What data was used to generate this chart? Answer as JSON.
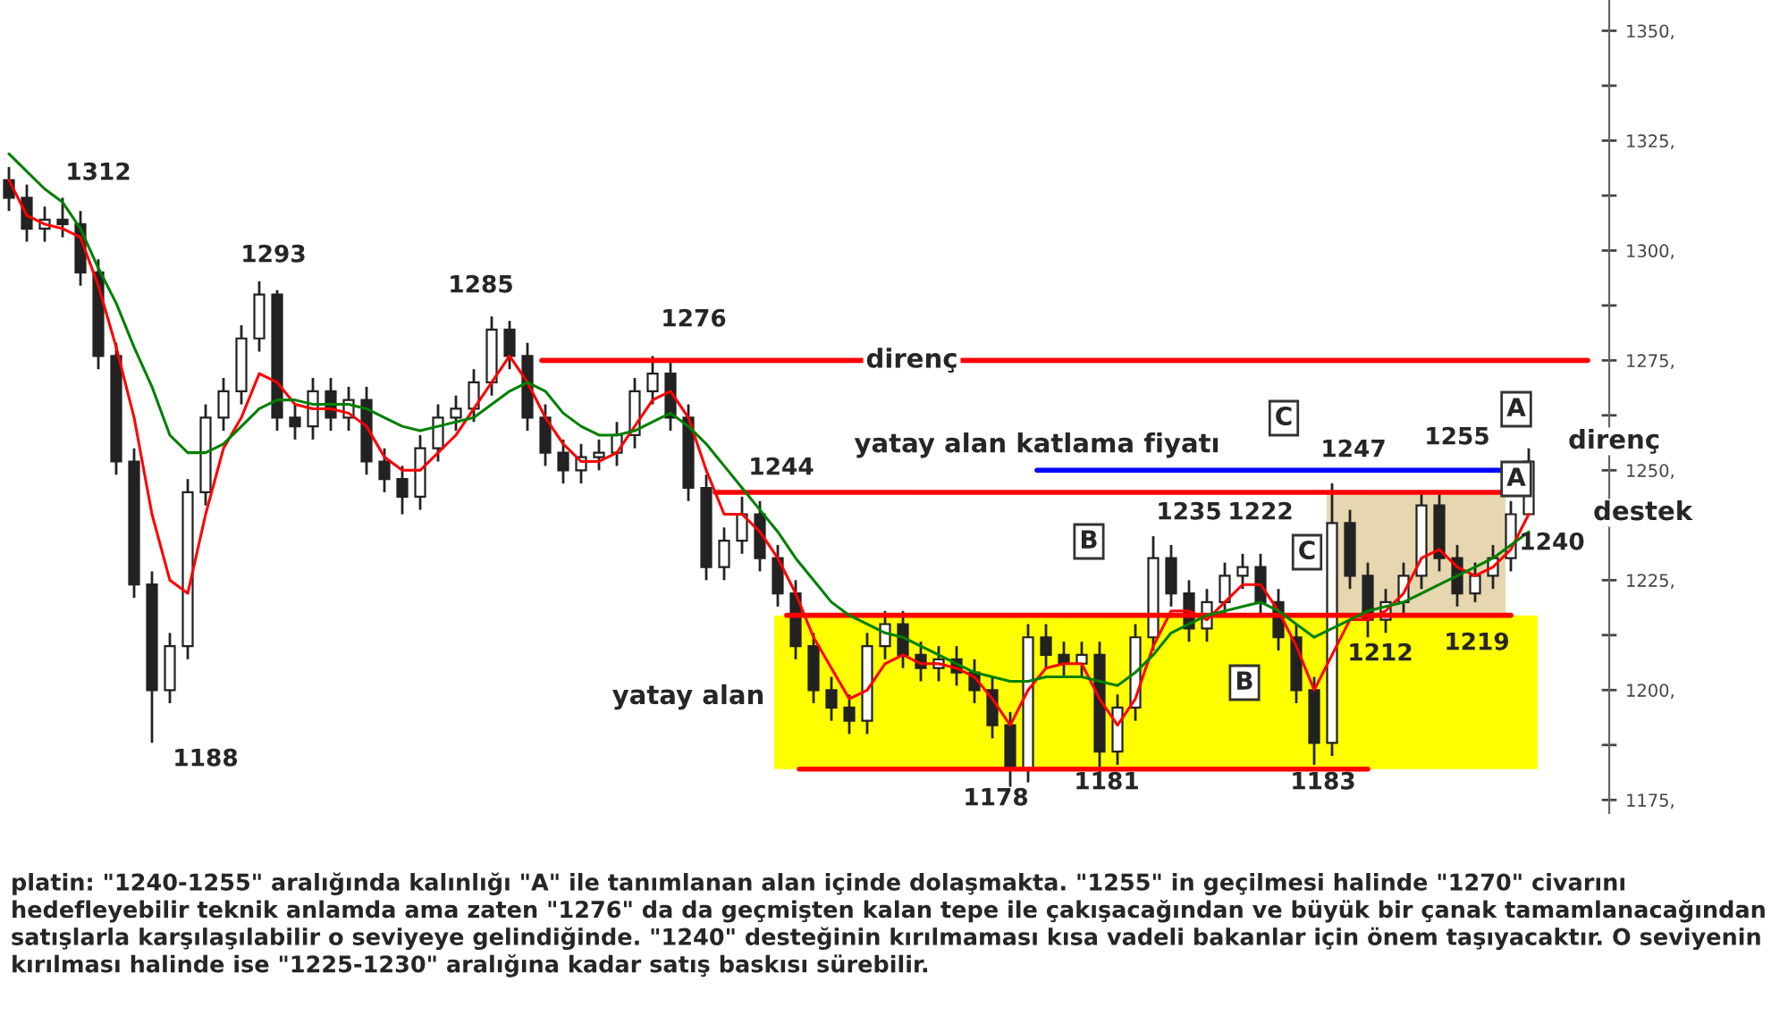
{
  "chart_data": {
    "type": "candlestick",
    "categories": [
      null,
      null,
      null,
      null,
      null,
      null,
      null,
      null,
      null,
      null,
      null,
      null,
      null,
      null,
      null,
      null,
      null,
      null,
      null,
      null,
      null,
      null,
      null,
      null,
      null,
      null,
      null,
      null,
      null,
      null,
      null,
      null,
      null,
      null,
      null,
      null,
      null,
      null,
      null,
      null,
      null,
      null,
      null,
      null,
      null,
      null,
      null,
      null,
      null,
      null,
      null,
      null,
      null,
      null,
      null,
      null,
      null,
      null,
      null,
      null,
      null,
      null,
      null,
      null,
      null,
      null,
      null,
      null,
      null,
      null,
      null,
      null,
      null,
      null,
      null,
      null,
      null,
      null,
      null,
      null,
      null,
      null,
      null,
      null,
      null,
      null
    ],
    "ohlc": [
      [
        1316,
        1319,
        1309,
        1312
      ],
      [
        1312,
        1315,
        1302,
        1305
      ],
      [
        1305,
        1310,
        1302,
        1307
      ],
      [
        1307,
        1312,
        1303,
        1306
      ],
      [
        1306,
        1309,
        1292,
        1295
      ],
      [
        1295,
        1298,
        1273,
        1276
      ],
      [
        1276,
        1279,
        1249,
        1252
      ],
      [
        1252,
        1255,
        1221,
        1224
      ],
      [
        1224,
        1227,
        1188,
        1200
      ],
      [
        1200,
        1213,
        1197,
        1210
      ],
      [
        1210,
        1248,
        1207,
        1245
      ],
      [
        1245,
        1265,
        1242,
        1262
      ],
      [
        1262,
        1271,
        1259,
        1268
      ],
      [
        1268,
        1283,
        1265,
        1280
      ],
      [
        1280,
        1293,
        1277,
        1290
      ],
      [
        1290,
        1291,
        1259,
        1262
      ],
      [
        1262,
        1265,
        1257,
        1260
      ],
      [
        1260,
        1271,
        1257,
        1268
      ],
      [
        1268,
        1271,
        1259,
        1262
      ],
      [
        1262,
        1269,
        1259,
        1266
      ],
      [
        1266,
        1269,
        1249,
        1252
      ],
      [
        1252,
        1255,
        1245,
        1248
      ],
      [
        1248,
        1251,
        1240,
        1244
      ],
      [
        1244,
        1258,
        1241,
        1255
      ],
      [
        1255,
        1265,
        1252,
        1262
      ],
      [
        1262,
        1267,
        1259,
        1264
      ],
      [
        1264,
        1273,
        1261,
        1270
      ],
      [
        1270,
        1285,
        1267,
        1282
      ],
      [
        1282,
        1284,
        1273,
        1276
      ],
      [
        1276,
        1279,
        1259,
        1262
      ],
      [
        1262,
        1265,
        1251,
        1254
      ],
      [
        1254,
        1257,
        1247,
        1250
      ],
      [
        1250,
        1256,
        1247,
        1253
      ],
      [
        1253,
        1257,
        1250,
        1254
      ],
      [
        1254,
        1261,
        1251,
        1258
      ],
      [
        1258,
        1271,
        1255,
        1268
      ],
      [
        1268,
        1276,
        1265,
        1272
      ],
      [
        1272,
        1275,
        1259,
        1262
      ],
      [
        1262,
        1265,
        1243,
        1246
      ],
      [
        1246,
        1249,
        1225,
        1228
      ],
      [
        1228,
        1237,
        1225,
        1234
      ],
      [
        1234,
        1244,
        1231,
        1240
      ],
      [
        1240,
        1243,
        1227,
        1230
      ],
      [
        1230,
        1233,
        1219,
        1222
      ],
      [
        1222,
        1225,
        1207,
        1210
      ],
      [
        1210,
        1213,
        1197,
        1200
      ],
      [
        1200,
        1203,
        1193,
        1196
      ],
      [
        1196,
        1199,
        1190,
        1193
      ],
      [
        1193,
        1213,
        1190,
        1210
      ],
      [
        1210,
        1218,
        1207,
        1215
      ],
      [
        1215,
        1218,
        1205,
        1208
      ],
      [
        1208,
        1211,
        1202,
        1205
      ],
      [
        1205,
        1210,
        1202,
        1207
      ],
      [
        1207,
        1210,
        1201,
        1204
      ],
      [
        1204,
        1207,
        1197,
        1200
      ],
      [
        1200,
        1203,
        1189,
        1192
      ],
      [
        1192,
        1195,
        1178,
        1182
      ],
      [
        1182,
        1215,
        1179,
        1212
      ],
      [
        1212,
        1215,
        1205,
        1208
      ],
      [
        1208,
        1211,
        1203,
        1206
      ],
      [
        1206,
        1211,
        1203,
        1208
      ],
      [
        1208,
        1211,
        1181,
        1186
      ],
      [
        1186,
        1199,
        1183,
        1196
      ],
      [
        1196,
        1215,
        1193,
        1212
      ],
      [
        1212,
        1235,
        1209,
        1230
      ],
      [
        1230,
        1233,
        1219,
        1222
      ],
      [
        1222,
        1225,
        1211,
        1214
      ],
      [
        1214,
        1223,
        1211,
        1220
      ],
      [
        1220,
        1229,
        1217,
        1226
      ],
      [
        1226,
        1231,
        1223,
        1228
      ],
      [
        1228,
        1231,
        1217,
        1220
      ],
      [
        1220,
        1223,
        1209,
        1212
      ],
      [
        1212,
        1215,
        1197,
        1200
      ],
      [
        1200,
        1203,
        1183,
        1188
      ],
      [
        1188,
        1247,
        1185,
        1238
      ],
      [
        1238,
        1241,
        1223,
        1226
      ],
      [
        1226,
        1229,
        1212,
        1216
      ],
      [
        1216,
        1223,
        1213,
        1220
      ],
      [
        1220,
        1229,
        1217,
        1226
      ],
      [
        1226,
        1245,
        1223,
        1242
      ],
      [
        1242,
        1245,
        1227,
        1230
      ],
      [
        1230,
        1233,
        1219,
        1222
      ],
      [
        1222,
        1229,
        1220,
        1226
      ],
      [
        1226,
        1233,
        1223,
        1230
      ],
      [
        1230,
        1243,
        1227,
        1240
      ],
      [
        1240,
        1255,
        1240,
        1252
      ]
    ],
    "series": [
      {
        "type": "line",
        "color": "#ff0000",
        "values": [
          1316,
          1308,
          1306,
          1305,
          1303,
          1292,
          1278,
          1262,
          1240,
          1225,
          1222,
          1240,
          1255,
          1262,
          1272,
          1270,
          1265,
          1264,
          1264,
          1263,
          1260,
          1253,
          1250,
          1250,
          1254,
          1258,
          1264,
          1270,
          1276,
          1270,
          1262,
          1256,
          1252,
          1252,
          1254,
          1260,
          1266,
          1268,
          1262,
          1250,
          1240,
          1240,
          1236,
          1230,
          1222,
          1212,
          1205,
          1198,
          1200,
          1206,
          1208,
          1206,
          1206,
          1205,
          1203,
          1198,
          1192,
          1200,
          1205,
          1206,
          1206,
          1198,
          1192,
          1198,
          1210,
          1218,
          1218,
          1216,
          1220,
          1224,
          1224,
          1218,
          1210,
          1200,
          1208,
          1216,
          1216,
          1218,
          1222,
          1230,
          1232,
          1228,
          1226,
          1228,
          1232,
          1240
        ]
      },
      {
        "type": "line",
        "color": "#008000",
        "values": [
          1322,
          1318,
          1314,
          1311,
          1305,
          1296,
          1288,
          1278,
          1269,
          1258,
          1254,
          1254,
          1256,
          1260,
          1264,
          1266,
          1266,
          1265,
          1265,
          1265,
          1264,
          1262,
          1260,
          1259,
          1260,
          1261,
          1262,
          1265,
          1268,
          1270,
          1268,
          1263,
          1260,
          1258,
          1258,
          1259,
          1261,
          1263,
          1260,
          1256,
          1251,
          1246,
          1241,
          1236,
          1230,
          1225,
          1220,
          1217,
          1215,
          1213,
          1212,
          1210,
          1208,
          1206,
          1204,
          1203,
          1202,
          1202,
          1203,
          1203,
          1203,
          1202,
          1201,
          1204,
          1208,
          1213,
          1215,
          1217,
          1218,
          1219,
          1220,
          1218,
          1215,
          1212,
          1214,
          1216,
          1218,
          1219,
          1220,
          1222,
          1224,
          1226,
          1228,
          1230,
          1233,
          1236
        ]
      }
    ],
    "ylim": [
      1172,
      1357
    ],
    "yticks": [
      {
        "value": 1175,
        "label": "1175,"
      },
      {
        "value": 1200,
        "label": "1200,"
      },
      {
        "value": 1225,
        "label": "1225,"
      },
      {
        "value": 1250,
        "label": "1250,"
      },
      {
        "value": 1275,
        "label": "1275,"
      },
      {
        "value": 1300,
        "label": "1300,"
      },
      {
        "value": 1325,
        "label": "1325,"
      },
      {
        "value": 1350,
        "label": "1350,"
      }
    ],
    "tick_labels": "y",
    "grid": false,
    "bands": [
      {
        "axis": "y",
        "from": 1182,
        "to": 1217,
        "label": "yatay alan",
        "color": "#ffff00"
      },
      {
        "axis": "y",
        "from": 1217,
        "to": 1245,
        "color": "#e6d7b0"
      }
    ],
    "ref_lines": [
      {
        "axis": "y",
        "value": 1275,
        "label": "direnç",
        "color": "#ff0000"
      },
      {
        "axis": "y",
        "value": 1250,
        "label": "yatay alan katlama fiyatı",
        "color": "#0000ff"
      },
      {
        "axis": "y",
        "value": 1245,
        "color": "#ff0000"
      },
      {
        "axis": "y",
        "value": 1217,
        "color": "#ff0000"
      },
      {
        "axis": "y",
        "value": 1182,
        "color": "#ff0000"
      }
    ],
    "annotations": [
      "1312",
      "1293",
      "1285",
      "1276",
      "1244",
      "1188",
      "1178",
      "1181",
      "1183",
      "1247",
      "1235",
      "1212",
      "1219",
      "1255",
      "1240",
      "1222",
      "direnç",
      "destek",
      "A",
      "A",
      "B",
      "B",
      "C",
      "C",
      "platin: \"1240-1255\" aralığında kalınlığı \"A\" ile tanımlanan alan içinde dolaşmakta. \"1255\" in geçilmesi halinde \"1270\" civarını hedefleyebilir teknik anlamda ama zaten \"1276\" da da geçmişten kalan tepe ile çakışacağından ve büyük bir çanak tamamlanacağından satışlarla karşılaşılabilir o seviyeye gelindiğinde. \"1240\" desteğinin kırılmaması kısa vadeli bakanlar için önem taşıyacaktır. O seviyenin kırılması halinde ise \"1225-1230\" aralığına kadar satış baskısı sürebilir."
    ]
  }
}
